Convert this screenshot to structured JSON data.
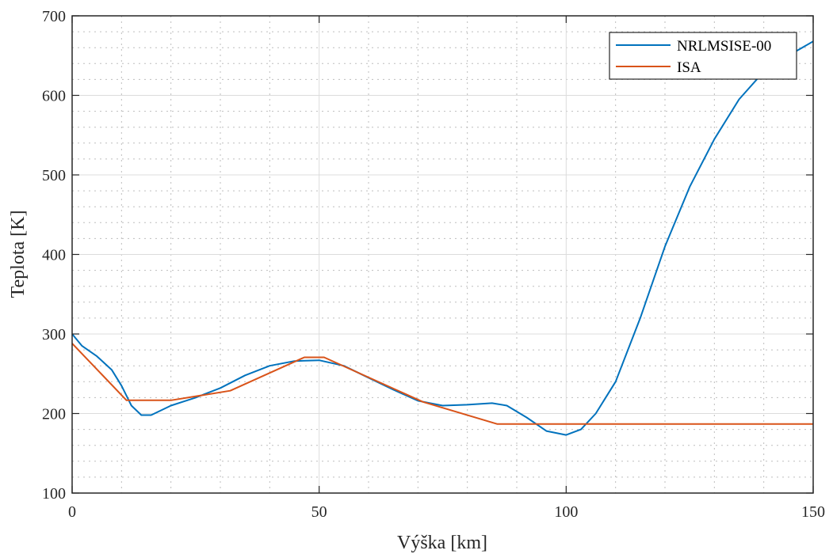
{
  "chart_data": {
    "type": "line",
    "title": "",
    "xlabel": "Výška [km]",
    "ylabel": "Teplota [K]",
    "xlim": [
      0,
      150
    ],
    "ylim": [
      100,
      700
    ],
    "xticks": [
      0,
      50,
      100,
      150
    ],
    "yticks": [
      100,
      200,
      300,
      400,
      500,
      600,
      700
    ],
    "xtick_labels": [
      "0",
      "50",
      "100",
      "150"
    ],
    "ytick_labels": [
      "100",
      "200",
      "300",
      "400",
      "500",
      "600",
      "700"
    ],
    "grid": true,
    "minor_grid": true,
    "legend_position": "top-right",
    "series": [
      {
        "name": "NRLMSISE-00",
        "color": "#0072BD",
        "x": [
          0,
          2,
          5,
          8,
          10,
          12,
          14,
          16,
          18,
          20,
          25,
          30,
          35,
          40,
          45,
          50,
          55,
          60,
          65,
          70,
          75,
          80,
          85,
          88,
          92,
          96,
          100,
          103,
          106,
          110,
          115,
          120,
          125,
          130,
          135,
          140,
          145,
          150
        ],
        "y": [
          300,
          285,
          272,
          255,
          235,
          210,
          198,
          198,
          204,
          210,
          220,
          232,
          248,
          260,
          266,
          267,
          260,
          245,
          230,
          216,
          210,
          211,
          213,
          210,
          195,
          178,
          173,
          180,
          200,
          240,
          320,
          410,
          485,
          545,
          595,
          630,
          650,
          668
        ]
      },
      {
        "name": "ISA",
        "color": "#D95319",
        "x": [
          0,
          11,
          20,
          32,
          47,
          51,
          71,
          86,
          150
        ],
        "y": [
          288.15,
          216.65,
          216.65,
          228.65,
          270.65,
          270.65,
          214.65,
          186.87,
          186.87
        ]
      }
    ]
  }
}
